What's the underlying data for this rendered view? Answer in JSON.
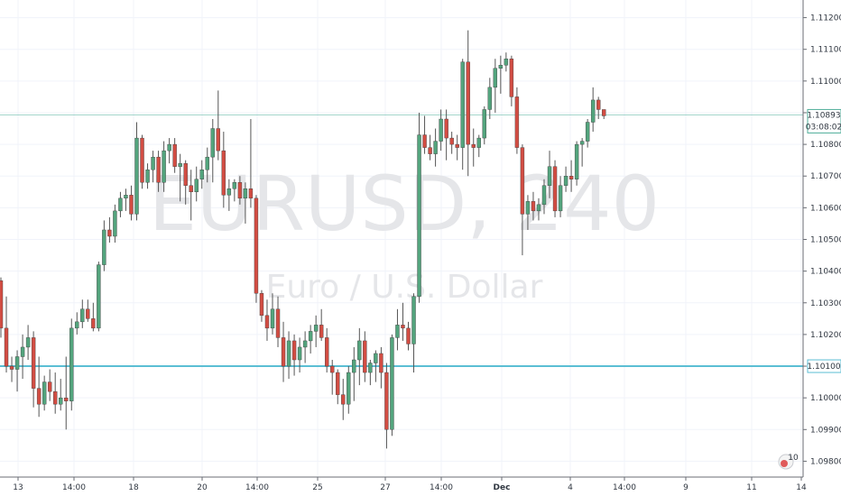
{
  "chart_data": {
    "type": "candlestick",
    "watermark": {
      "symbol": "EURUSD, 240",
      "description": "Euro / U.S. Dollar"
    },
    "y_range": [
      1.0975,
      1.1125
    ],
    "y_ticks": [
      "1.11200",
      "1.11100",
      "1.11000",
      "1.10900",
      "1.10800",
      "1.10700",
      "1.10600",
      "1.10500",
      "1.10400",
      "1.10300",
      "1.10200",
      "1.10100",
      "1.10000",
      "1.09900",
      "1.09800"
    ],
    "x_ticks": [
      "13",
      "14:00",
      "18",
      "20",
      "14:00",
      "25",
      "27",
      "14:00",
      "Dec",
      "4",
      "14:00",
      "9",
      "11",
      "14"
    ],
    "price_tag": {
      "value": "1.10893",
      "countdown": "03:08:02",
      "color": "#4fae9a"
    },
    "level_tag": {
      "value": "1.10100",
      "color": "#5bbed4"
    },
    "badge": {
      "text": "10"
    },
    "colors": {
      "up": "#53a47d",
      "down": "#d24d43",
      "wick": "#555555"
    },
    "candles": [
      [
        1.1037,
        1.1038,
        1.1019,
        1.1022
      ],
      [
        1.1022,
        1.1032,
        1.1008,
        1.101
      ],
      [
        1.101,
        1.1013,
        1.1005,
        1.1009
      ],
      [
        1.1009,
        1.1015,
        1.1002,
        1.1013
      ],
      [
        1.1013,
        1.102,
        1.1006,
        1.1016
      ],
      [
        1.1016,
        1.1023,
        1.1012,
        1.1019
      ],
      [
        1.1019,
        1.1021,
        1.0997,
        1.1003
      ],
      [
        1.1003,
        1.1013,
        1.0994,
        1.0998
      ],
      [
        1.0998,
        1.1007,
        1.0996,
        1.1005
      ],
      [
        1.1005,
        1.1009,
        1.0999,
        1.1002
      ],
      [
        1.1002,
        1.1008,
        1.0995,
        1.0998
      ],
      [
        1.0998,
        1.1006,
        1.0996,
        1.1
      ],
      [
        1.1,
        1.1013,
        1.099,
        1.0999
      ],
      [
        1.0999,
        1.1025,
        1.0996,
        1.1022
      ],
      [
        1.1022,
        1.1027,
        1.102,
        1.1024
      ],
      [
        1.1024,
        1.1031,
        1.1022,
        1.1028
      ],
      [
        1.1028,
        1.1031,
        1.1024,
        1.1025
      ],
      [
        1.1025,
        1.103,
        1.1021,
        1.1022
      ],
      [
        1.1022,
        1.1043,
        1.1021,
        1.1042
      ],
      [
        1.1042,
        1.1056,
        1.104,
        1.1053
      ],
      [
        1.1053,
        1.1057,
        1.1049,
        1.1051
      ],
      [
        1.1051,
        1.1061,
        1.1049,
        1.1059
      ],
      [
        1.1059,
        1.1065,
        1.1057,
        1.1063
      ],
      [
        1.1063,
        1.1066,
        1.1059,
        1.1064
      ],
      [
        1.1064,
        1.1067,
        1.1056,
        1.1058
      ],
      [
        1.1058,
        1.1087,
        1.1056,
        1.1082
      ],
      [
        1.1082,
        1.1083,
        1.1066,
        1.1068
      ],
      [
        1.1068,
        1.1074,
        1.1066,
        1.1072
      ],
      [
        1.1072,
        1.1078,
        1.1068,
        1.1076
      ],
      [
        1.1076,
        1.1078,
        1.1065,
        1.1068
      ],
      [
        1.1068,
        1.1081,
        1.1065,
        1.1078
      ],
      [
        1.1078,
        1.1082,
        1.1074,
        1.108
      ],
      [
        1.108,
        1.1082,
        1.1071,
        1.1073
      ],
      [
        1.1073,
        1.1077,
        1.1062,
        1.1074
      ],
      [
        1.1074,
        1.1075,
        1.1061,
        1.1067
      ],
      [
        1.1067,
        1.1072,
        1.1056,
        1.1065
      ],
      [
        1.1065,
        1.1073,
        1.1062,
        1.1069
      ],
      [
        1.1069,
        1.1075,
        1.1066,
        1.1072
      ],
      [
        1.1072,
        1.1079,
        1.1068,
        1.1076
      ],
      [
        1.1076,
        1.1088,
        1.1068,
        1.1085
      ],
      [
        1.1085,
        1.1097,
        1.1075,
        1.1078
      ],
      [
        1.1078,
        1.1084,
        1.106,
        1.1064
      ],
      [
        1.1064,
        1.1069,
        1.1059,
        1.1066
      ],
      [
        1.1066,
        1.1069,
        1.1062,
        1.1068
      ],
      [
        1.1068,
        1.107,
        1.1061,
        1.1063
      ],
      [
        1.1063,
        1.1068,
        1.1055,
        1.1066
      ],
      [
        1.1066,
        1.1088,
        1.106,
        1.1063
      ],
      [
        1.1063,
        1.1064,
        1.103,
        1.1033
      ],
      [
        1.1033,
        1.1034,
        1.1024,
        1.1026
      ],
      [
        1.1026,
        1.1031,
        1.1018,
        1.1022
      ],
      [
        1.1022,
        1.1033,
        1.102,
        1.1028
      ],
      [
        1.1028,
        1.1032,
        1.1016,
        1.1019
      ],
      [
        1.1019,
        1.1024,
        1.1005,
        1.101
      ],
      [
        1.101,
        1.1021,
        1.1006,
        1.1018
      ],
      [
        1.1018,
        1.102,
        1.1007,
        1.1012
      ],
      [
        1.1012,
        1.1019,
        1.1008,
        1.1016
      ],
      [
        1.1016,
        1.1021,
        1.1011,
        1.1018
      ],
      [
        1.1018,
        1.1023,
        1.1014,
        1.1021
      ],
      [
        1.1021,
        1.1026,
        1.1016,
        1.1023
      ],
      [
        1.1023,
        1.1028,
        1.1018,
        1.1019
      ],
      [
        1.1019,
        1.1022,
        1.1008,
        1.101
      ],
      [
        1.101,
        1.1012,
        1.1001,
        1.1008
      ],
      [
        1.1008,
        1.1009,
        1.0998,
        1.1001
      ],
      [
        1.1001,
        1.1006,
        1.0993,
        1.0998
      ],
      [
        1.0998,
        1.101,
        1.0995,
        1.1008
      ],
      [
        1.1008,
        1.1016,
        1.0999,
        1.1012
      ],
      [
        1.1012,
        1.1022,
        1.1004,
        1.1018
      ],
      [
        1.1018,
        1.1021,
        1.1005,
        1.1008
      ],
      [
        1.1008,
        1.1012,
        1.1004,
        1.1011
      ],
      [
        1.1011,
        1.1015,
        1.1005,
        1.1014
      ],
      [
        1.1014,
        1.1016,
        1.1003,
        1.1008
      ],
      [
        1.1008,
        1.1011,
        1.0984,
        1.099
      ],
      [
        1.099,
        1.102,
        1.0988,
        1.1019
      ],
      [
        1.1019,
        1.1028,
        1.1015,
        1.1023
      ],
      [
        1.1023,
        1.103,
        1.1018,
        1.1022
      ],
      [
        1.1022,
        1.1024,
        1.1015,
        1.1017
      ],
      [
        1.1017,
        1.1033,
        1.1008,
        1.1032
      ],
      [
        1.1032,
        1.109,
        1.103,
        1.1083
      ],
      [
        1.1083,
        1.1089,
        1.1077,
        1.1079
      ],
      [
        1.1079,
        1.1083,
        1.1075,
        1.1077
      ],
      [
        1.1077,
        1.1085,
        1.1073,
        1.1081
      ],
      [
        1.1081,
        1.1091,
        1.1078,
        1.1088
      ],
      [
        1.1088,
        1.1091,
        1.1075,
        1.1082
      ],
      [
        1.1082,
        1.1084,
        1.1077,
        1.108
      ],
      [
        1.108,
        1.1083,
        1.1075,
        1.1079
      ],
      [
        1.1079,
        1.1107,
        1.1072,
        1.1106
      ],
      [
        1.1106,
        1.1116,
        1.107,
        1.108
      ],
      [
        1.108,
        1.1085,
        1.1073,
        1.1079
      ],
      [
        1.1079,
        1.1083,
        1.1076,
        1.1082
      ],
      [
        1.1082,
        1.1092,
        1.108,
        1.1091
      ],
      [
        1.1091,
        1.1101,
        1.1088,
        1.1098
      ],
      [
        1.1098,
        1.1107,
        1.109,
        1.1104
      ],
      [
        1.1104,
        1.1108,
        1.1096,
        1.1105
      ],
      [
        1.1105,
        1.1109,
        1.1103,
        1.1107
      ],
      [
        1.1107,
        1.1108,
        1.1092,
        1.1095
      ],
      [
        1.1095,
        1.1098,
        1.1077,
        1.1079
      ],
      [
        1.1079,
        1.108,
        1.1045,
        1.1058
      ],
      [
        1.1058,
        1.1064,
        1.1053,
        1.1062
      ],
      [
        1.1062,
        1.1065,
        1.1056,
        1.1059
      ],
      [
        1.1059,
        1.1063,
        1.1056,
        1.1061
      ],
      [
        1.1061,
        1.1069,
        1.1058,
        1.1067
      ],
      [
        1.1067,
        1.1078,
        1.1063,
        1.1073
      ],
      [
        1.1073,
        1.1075,
        1.1057,
        1.1059
      ],
      [
        1.1059,
        1.107,
        1.1057,
        1.1067
      ],
      [
        1.1067,
        1.1073,
        1.1065,
        1.107
      ],
      [
        1.107,
        1.1075,
        1.1065,
        1.1069
      ],
      [
        1.1069,
        1.1081,
        1.1067,
        1.108
      ],
      [
        1.108,
        1.1082,
        1.1073,
        1.1081
      ],
      [
        1.1081,
        1.1088,
        1.1079,
        1.1087
      ],
      [
        1.1087,
        1.1098,
        1.1084,
        1.1094
      ],
      [
        1.1094,
        1.1095,
        1.1088,
        1.1091
      ],
      [
        1.1091,
        1.1091,
        1.1088,
        1.1089
      ]
    ]
  }
}
